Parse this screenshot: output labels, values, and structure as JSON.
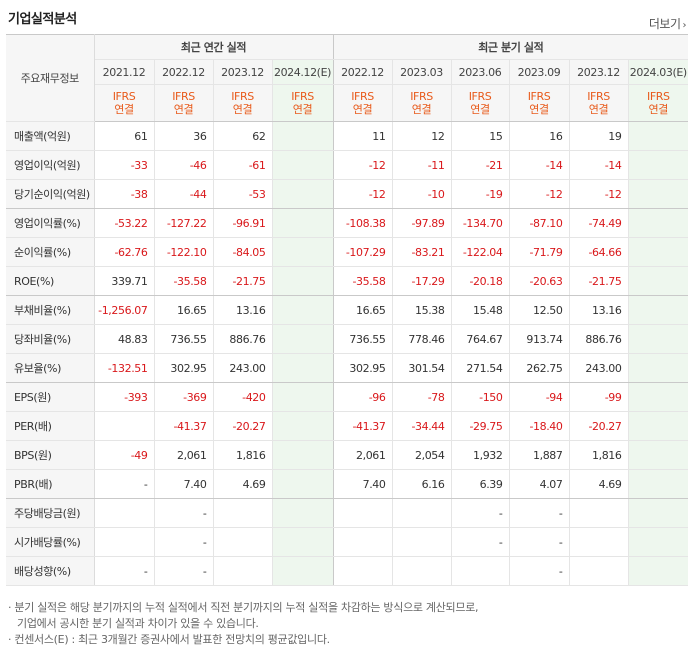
{
  "title": "기업실적분석",
  "more_label": "더보기",
  "more_arrow": "›",
  "header": {
    "row_label": "주요재무정보",
    "annual_group": "최근 연간 실적",
    "quarter_group": "최근 분기 실적",
    "ifrs_top": "IFRS",
    "ifrs_bottom": "연결",
    "periods": [
      "2021.12",
      "2022.12",
      "2023.12",
      "2024.12(E)",
      "2022.12",
      "2023.03",
      "2023.06",
      "2023.09",
      "2023.12",
      "2024.03(E)"
    ]
  },
  "rows": [
    {
      "label": "매출액(억원)",
      "values": [
        "61",
        "36",
        "62",
        "",
        "11",
        "12",
        "15",
        "16",
        "19",
        ""
      ]
    },
    {
      "label": "영업이익(억원)",
      "values": [
        "-33",
        "-46",
        "-61",
        "",
        "-12",
        "-11",
        "-21",
        "-14",
        "-14",
        ""
      ]
    },
    {
      "label": "당기순이익(억원)",
      "values": [
        "-38",
        "-44",
        "-53",
        "",
        "-12",
        "-10",
        "-19",
        "-12",
        "-12",
        ""
      ]
    },
    {
      "label": "영업이익률(%)",
      "values": [
        "-53.22",
        "-127.22",
        "-96.91",
        "",
        "-108.38",
        "-97.89",
        "-134.70",
        "-87.10",
        "-74.49",
        ""
      ]
    },
    {
      "label": "순이익률(%)",
      "values": [
        "-62.76",
        "-122.10",
        "-84.05",
        "",
        "-107.29",
        "-83.21",
        "-122.04",
        "-71.79",
        "-64.66",
        ""
      ]
    },
    {
      "label": "ROE(%)",
      "values": [
        "339.71",
        "-35.58",
        "-21.75",
        "",
        "-35.58",
        "-17.29",
        "-20.18",
        "-20.63",
        "-21.75",
        ""
      ]
    },
    {
      "label": "부채비율(%)",
      "values": [
        "-1,256.07",
        "16.65",
        "13.16",
        "",
        "16.65",
        "15.38",
        "15.48",
        "12.50",
        "13.16",
        ""
      ]
    },
    {
      "label": "당좌비율(%)",
      "values": [
        "48.83",
        "736.55",
        "886.76",
        "",
        "736.55",
        "778.46",
        "764.67",
        "913.74",
        "886.76",
        ""
      ]
    },
    {
      "label": "유보율(%)",
      "values": [
        "-132.51",
        "302.95",
        "243.00",
        "",
        "302.95",
        "301.54",
        "271.54",
        "262.75",
        "243.00",
        ""
      ]
    },
    {
      "label": "EPS(원)",
      "values": [
        "-393",
        "-369",
        "-420",
        "",
        "-96",
        "-78",
        "-150",
        "-94",
        "-99",
        ""
      ]
    },
    {
      "label": "PER(배)",
      "values": [
        "",
        "-41.37",
        "-20.27",
        "",
        "-41.37",
        "-34.44",
        "-29.75",
        "-18.40",
        "-20.27",
        ""
      ]
    },
    {
      "label": "BPS(원)",
      "values": [
        "-49",
        "2,061",
        "1,816",
        "",
        "2,061",
        "2,054",
        "1,932",
        "1,887",
        "1,816",
        ""
      ]
    },
    {
      "label": "PBR(배)",
      "values": [
        "-",
        "7.40",
        "4.69",
        "",
        "7.40",
        "6.16",
        "6.39",
        "4.07",
        "4.69",
        ""
      ]
    },
    {
      "label": "주당배당금(원)",
      "values": [
        "",
        "-",
        "",
        "",
        "",
        "",
        "-",
        "-",
        "",
        ""
      ]
    },
    {
      "label": "시가배당률(%)",
      "values": [
        "",
        "-",
        "",
        "",
        "",
        "",
        "-",
        "-",
        "",
        ""
      ]
    },
    {
      "label": "배당성향(%)",
      "values": [
        "-",
        "-",
        "",
        "",
        "",
        "",
        "",
        "-",
        "",
        ""
      ]
    }
  ],
  "notes": [
    "· 분기 실적은 해당 분기까지의 누적 실적에서 직전 분기까지의 누적 실적을 차감하는 방식으로 계산되므로,",
    "  기업에서 공시한 분기 실적과 차이가 있을 수 있습니다.",
    "· 컨센서스(E) : 최근 3개월간 증권사에서 발표한 전망치의 평균값입니다."
  ]
}
